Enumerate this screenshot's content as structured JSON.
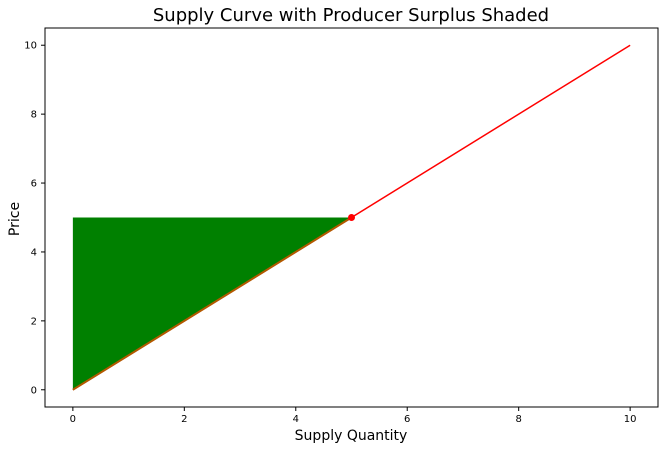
{
  "chart_data": {
    "type": "line",
    "title": "Supply Curve with Producer Surplus Shaded",
    "xlabel": "Supply Quantity",
    "ylabel": "Price",
    "xlim": [
      -0.5,
      10.5
    ],
    "ylim": [
      -0.5,
      10.5
    ],
    "xticks": [
      "0",
      "2",
      "4",
      "6",
      "8",
      "10"
    ],
    "yticks": [
      "0",
      "2",
      "4",
      "6",
      "8",
      "10"
    ],
    "grid": false,
    "series": [
      {
        "type": "line",
        "x": [
          0,
          10
        ],
        "y": [
          0,
          10
        ],
        "color": "#ff0000"
      },
      {
        "type": "area",
        "x": [
          0,
          5,
          0
        ],
        "y": [
          0,
          5,
          5
        ],
        "color": "#008000"
      },
      {
        "type": "line",
        "x": [
          0,
          5
        ],
        "y": [
          0,
          5
        ],
        "color": "#b35900"
      },
      {
        "type": "point",
        "x": [
          5
        ],
        "y": [
          5
        ],
        "color": "#ff0000"
      }
    ]
  }
}
